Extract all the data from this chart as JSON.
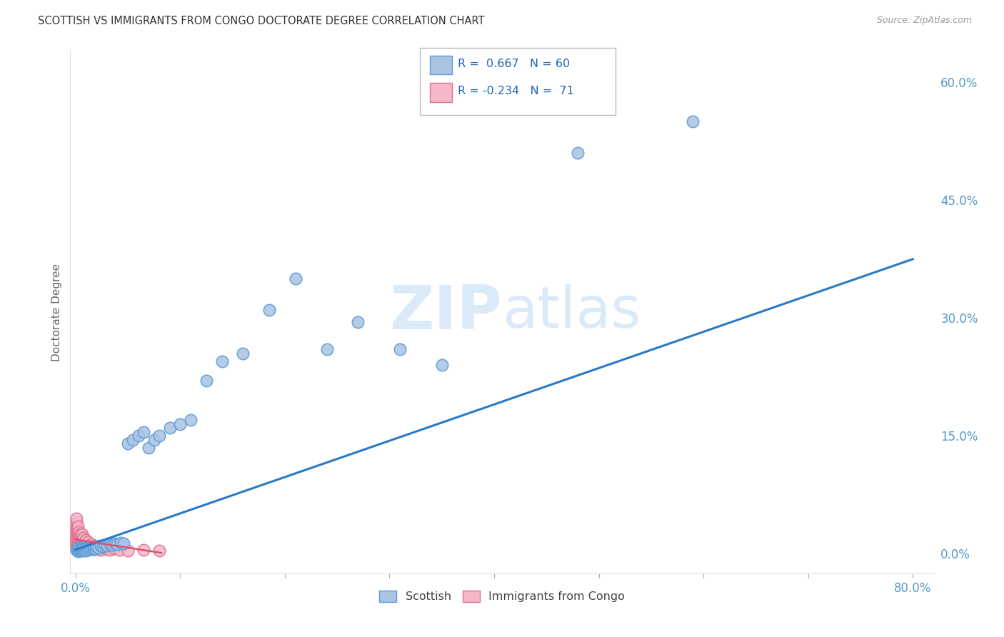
{
  "title": "SCOTTISH VS IMMIGRANTS FROM CONGO DOCTORATE DEGREE CORRELATION CHART",
  "source": "Source: ZipAtlas.com",
  "ylabel_label": "Doctorate Degree",
  "r_scottish": 0.667,
  "n_scottish": 60,
  "r_congo": -0.234,
  "n_congo": 71,
  "scottish_color": "#aac4e2",
  "scottish_edge": "#5b9bd5",
  "congo_color": "#f4b8c8",
  "congo_edge": "#e07090",
  "line_blue": "#2979c8",
  "line_pink": "#e05070",
  "background": "#ffffff",
  "grid_color": "#c8c8c8",
  "title_color": "#333333",
  "axis_tick_color": "#5599cc",
  "watermark_color": "#daeaf8",
  "legend_color": "#2266bb",
  "scottish_x": [
    0.001,
    0.002,
    0.002,
    0.002,
    0.003,
    0.003,
    0.004,
    0.004,
    0.005,
    0.005,
    0.006,
    0.006,
    0.007,
    0.007,
    0.008,
    0.009,
    0.01,
    0.01,
    0.011,
    0.012,
    0.013,
    0.014,
    0.015,
    0.016,
    0.017,
    0.018,
    0.019,
    0.02,
    0.022,
    0.024,
    0.026,
    0.028,
    0.03,
    0.033,
    0.035,
    0.038,
    0.04,
    0.043,
    0.046,
    0.05,
    0.055,
    0.06,
    0.065,
    0.07,
    0.075,
    0.08,
    0.09,
    0.1,
    0.11,
    0.125,
    0.14,
    0.16,
    0.185,
    0.21,
    0.24,
    0.27,
    0.31,
    0.35,
    0.48,
    0.59
  ],
  "scottish_y": [
    0.005,
    0.004,
    0.007,
    0.003,
    0.005,
    0.008,
    0.004,
    0.007,
    0.004,
    0.006,
    0.005,
    0.008,
    0.004,
    0.007,
    0.006,
    0.005,
    0.007,
    0.004,
    0.006,
    0.005,
    0.007,
    0.006,
    0.008,
    0.007,
    0.006,
    0.008,
    0.007,
    0.009,
    0.008,
    0.01,
    0.009,
    0.011,
    0.01,
    0.012,
    0.011,
    0.013,
    0.012,
    0.014,
    0.013,
    0.14,
    0.145,
    0.15,
    0.155,
    0.135,
    0.145,
    0.15,
    0.16,
    0.165,
    0.17,
    0.22,
    0.245,
    0.255,
    0.31,
    0.35,
    0.26,
    0.295,
    0.26,
    0.24,
    0.51,
    0.55
  ],
  "congo_x": [
    0.001,
    0.001,
    0.001,
    0.001,
    0.001,
    0.001,
    0.001,
    0.001,
    0.001,
    0.001,
    0.001,
    0.001,
    0.001,
    0.001,
    0.001,
    0.002,
    0.002,
    0.002,
    0.002,
    0.002,
    0.002,
    0.002,
    0.002,
    0.003,
    0.003,
    0.003,
    0.003,
    0.003,
    0.004,
    0.004,
    0.004,
    0.004,
    0.004,
    0.005,
    0.005,
    0.005,
    0.005,
    0.006,
    0.006,
    0.006,
    0.006,
    0.007,
    0.007,
    0.007,
    0.008,
    0.008,
    0.008,
    0.009,
    0.009,
    0.01,
    0.01,
    0.01,
    0.011,
    0.011,
    0.012,
    0.013,
    0.014,
    0.015,
    0.016,
    0.018,
    0.019,
    0.021,
    0.024,
    0.026,
    0.03,
    0.033,
    0.037,
    0.042,
    0.05,
    0.065,
    0.08
  ],
  "congo_y": [
    0.035,
    0.03,
    0.025,
    0.02,
    0.018,
    0.015,
    0.012,
    0.01,
    0.008,
    0.04,
    0.045,
    0.022,
    0.016,
    0.028,
    0.032,
    0.025,
    0.02,
    0.015,
    0.01,
    0.03,
    0.018,
    0.012,
    0.035,
    0.022,
    0.015,
    0.01,
    0.028,
    0.018,
    0.015,
    0.02,
    0.012,
    0.025,
    0.008,
    0.018,
    0.012,
    0.022,
    0.008,
    0.015,
    0.02,
    0.01,
    0.025,
    0.012,
    0.018,
    0.008,
    0.015,
    0.01,
    0.02,
    0.008,
    0.015,
    0.01,
    0.018,
    0.006,
    0.012,
    0.008,
    0.015,
    0.01,
    0.008,
    0.012,
    0.006,
    0.01,
    0.006,
    0.008,
    0.005,
    0.008,
    0.006,
    0.005,
    0.007,
    0.005,
    0.004,
    0.005,
    0.004
  ],
  "blue_line_x": [
    0.0,
    0.8
  ],
  "blue_line_y": [
    0.005,
    0.375
  ],
  "pink_line_x": [
    0.0,
    0.082
  ],
  "pink_line_y": [
    0.018,
    0.001
  ],
  "xticks": [
    0.0,
    0.1,
    0.2,
    0.3,
    0.4,
    0.5,
    0.6,
    0.7,
    0.8
  ],
  "xtick_labels": [
    "0.0%",
    "",
    "",
    "",
    "",
    "",
    "",
    "",
    "80.0%"
  ],
  "yticks_right": [
    0.0,
    0.15,
    0.3,
    0.45,
    0.6
  ],
  "ytick_labels_right": [
    "0.0%",
    "15.0%",
    "30.0%",
    "45.0%",
    "60.0%"
  ],
  "xlim": [
    -0.005,
    0.82
  ],
  "ylim": [
    -0.025,
    0.64
  ],
  "bottom_legend_labels": [
    "Scottish",
    "Immigrants from Congo"
  ]
}
